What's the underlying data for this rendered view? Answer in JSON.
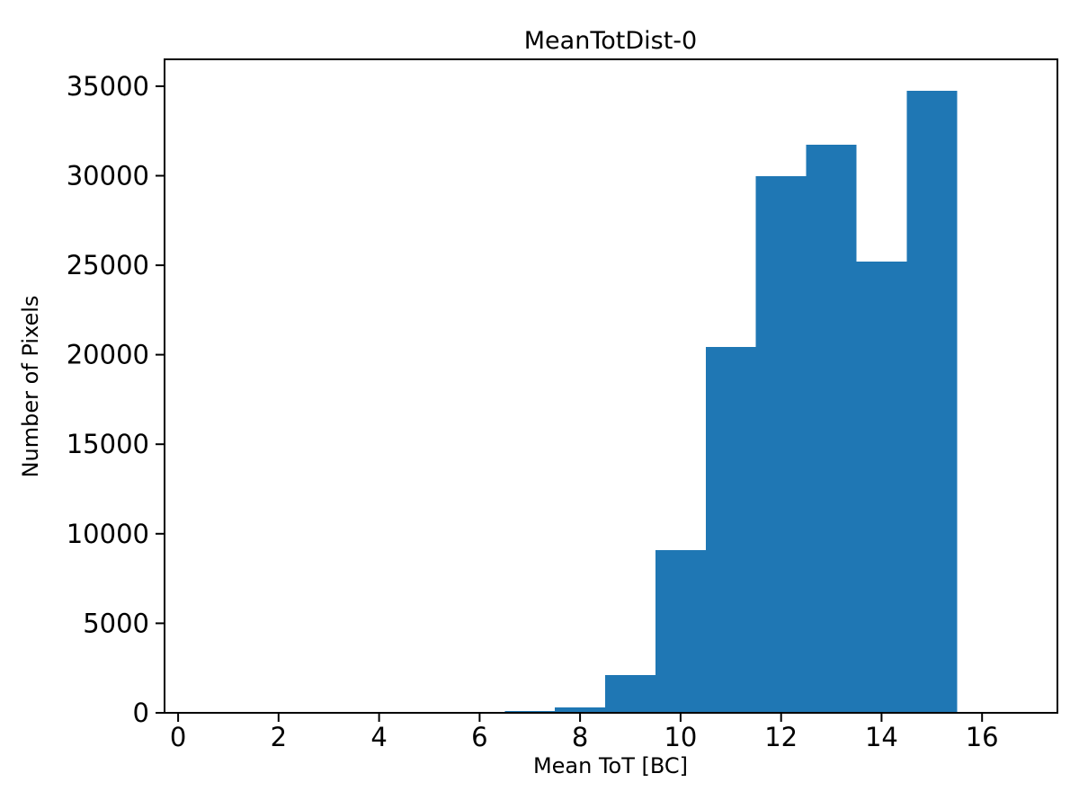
{
  "chart_data": {
    "type": "bar",
    "histogram": true,
    "title": "MeanTotDist-0",
    "xlabel": "Mean ToT [BC]",
    "ylabel": "Number of Pixels",
    "bin_edges": [
      6.5,
      7.5,
      8.5,
      9.5,
      10.5,
      11.5,
      12.5,
      13.5,
      14.5,
      15.5
    ],
    "values": [
      100,
      290,
      2120,
      9080,
      20430,
      29980,
      31730,
      25210,
      34750
    ],
    "categories": [
      "6.5-7.5",
      "7.5-8.5",
      "8.5-9.5",
      "9.5-10.5",
      "10.5-11.5",
      "11.5-12.5",
      "12.5-13.5",
      "13.5-14.5",
      "14.5-15.5"
    ],
    "xlim": [
      -0.27,
      17.5
    ],
    "ylim": [
      0,
      36500
    ],
    "x_ticks": {
      "values": [
        0,
        2,
        4,
        6,
        8,
        10,
        12,
        14,
        16
      ],
      "labels": [
        "0",
        "2",
        "4",
        "6",
        "8",
        "10",
        "12",
        "14",
        "16"
      ]
    },
    "y_ticks": {
      "values": [
        0,
        5000,
        10000,
        15000,
        20000,
        25000,
        30000,
        35000
      ],
      "labels": [
        "0",
        "5000",
        "10000",
        "15000",
        "20000",
        "25000",
        "30000",
        "35000"
      ]
    },
    "bar_color": "#1f77b4",
    "axis_color": "#000000",
    "background_color": "#ffffff",
    "grid": false,
    "legend": null
  }
}
